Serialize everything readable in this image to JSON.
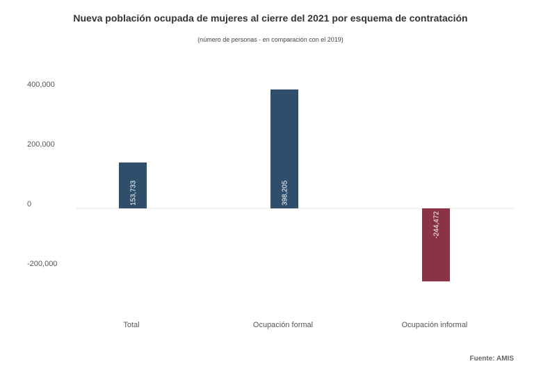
{
  "chart_data": {
    "type": "bar",
    "title": "Nueva población ocupada de mujeres al cierre del 2021 por esquema de contratación",
    "subtitle": "(número de personas - en comparación con el 2019)",
    "categories": [
      "Total",
      "Ocupación formal",
      "Ocupación informal"
    ],
    "values": [
      153733,
      398205,
      -244472
    ],
    "data_labels": [
      "153,733",
      "398,205",
      "-244,472"
    ],
    "colors": [
      "#2e4e6b",
      "#2e4e6b",
      "#8b3344"
    ],
    "yticks": [
      400000,
      200000,
      0,
      -200000
    ],
    "ytick_labels": [
      "400,000",
      "200,000",
      "0",
      "-200,000"
    ],
    "ylim": [
      -300000,
      430000
    ],
    "grid": false,
    "source": "Fuente: AMIS"
  }
}
